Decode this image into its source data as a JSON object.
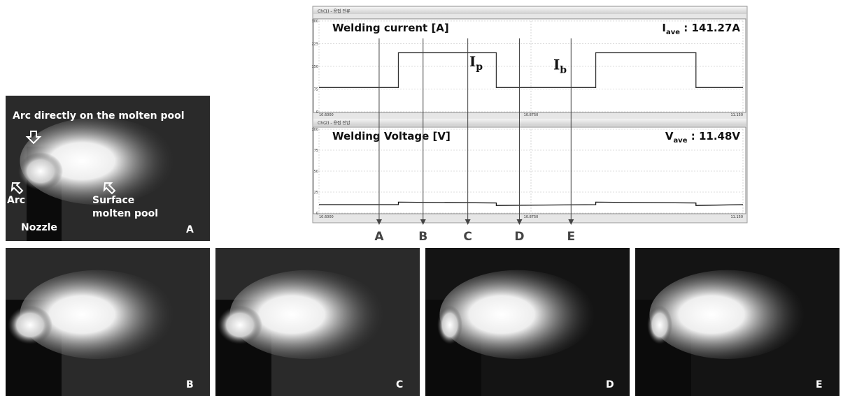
{
  "chart_data": [
    {
      "type": "line",
      "window_title": "Ch(1) - 용접 전류",
      "title": "Welding current [A]",
      "average": {
        "symbol": "I",
        "sub": "ave",
        "text": " : 141.27A"
      },
      "annotations": [
        {
          "symbol": "I",
          "sub": "p",
          "x": 10.795,
          "y": 150
        },
        {
          "symbol": "I",
          "sub": "b",
          "x": 10.904,
          "y": 140
        }
      ],
      "x": [
        10.6,
        10.703,
        10.703,
        10.83,
        10.83,
        10.959,
        10.959,
        11.089,
        11.089,
        11.15
      ],
      "values": [
        80,
        80,
        195,
        195,
        80,
        80,
        195,
        195,
        80,
        80
      ],
      "color": "#333333",
      "xlim": [
        10.6,
        11.15
      ],
      "ylim": [
        0,
        300
      ],
      "xticks": [
        {
          "value": 10.6,
          "label": "10.6000"
        },
        {
          "value": 10.875,
          "label": "10.8750"
        },
        {
          "value": 11.15,
          "label": "11.150"
        }
      ],
      "yticks": [
        0,
        75,
        150,
        225,
        300
      ],
      "grid": true
    },
    {
      "type": "line",
      "window_title": "Ch(2) - 용접 전압",
      "title": "Welding Voltage [V]",
      "average": {
        "symbol": "V",
        "sub": "ave",
        "text": " : 11.48V"
      },
      "annotations": [],
      "x": [
        10.6,
        10.703,
        10.703,
        10.83,
        10.83,
        10.959,
        10.959,
        11.089,
        11.089,
        11.15
      ],
      "values": [
        10,
        10,
        13,
        12,
        9,
        10,
        13,
        12,
        9,
        10
      ],
      "color": "#111111",
      "xlim": [
        10.6,
        11.15
      ],
      "ylim": [
        0,
        100
      ],
      "xticks": [
        {
          "value": 10.6,
          "label": "10.6000"
        },
        {
          "value": 10.875,
          "label": "10.8750"
        },
        {
          "value": 11.15,
          "label": "11.150"
        }
      ],
      "yticks": [
        0,
        25,
        50,
        75,
        100
      ],
      "grid": true
    }
  ],
  "markers": {
    "labels": [
      "A",
      "B",
      "C",
      "D",
      "E"
    ],
    "x": [
      10.678,
      10.735,
      10.793,
      10.86,
      10.927
    ]
  },
  "photos": [
    {
      "label": "A",
      "annotations": [
        "Arc directly on the molten pool",
        "Arc",
        "Surface",
        "molten pool",
        "Nozzle"
      ]
    },
    {
      "label": "B"
    },
    {
      "label": "C"
    },
    {
      "label": "D"
    },
    {
      "label": "E"
    }
  ]
}
